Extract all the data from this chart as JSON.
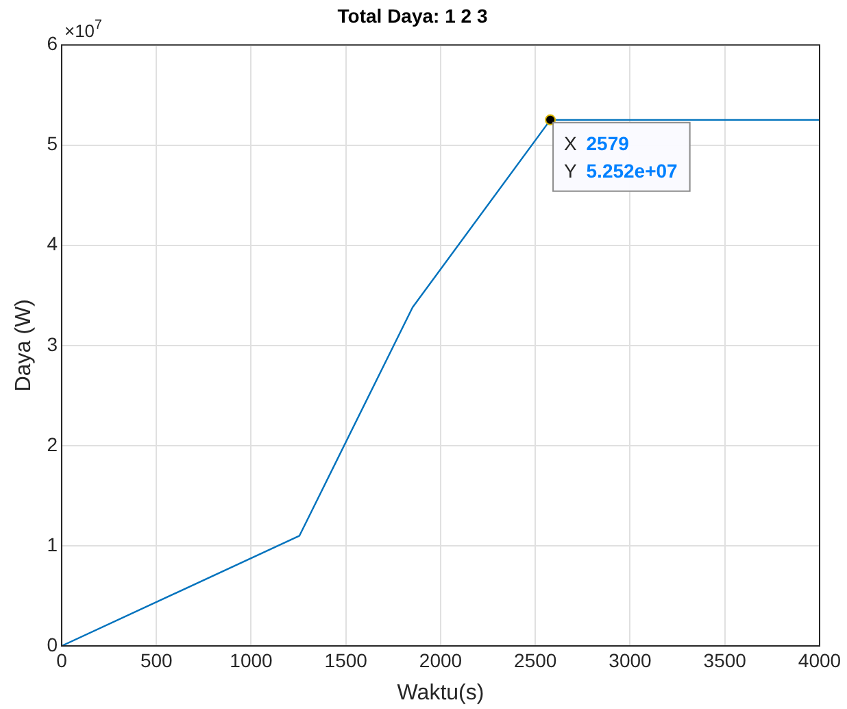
{
  "chart_data": {
    "type": "line",
    "title": "Total Daya: 1 2 3",
    "xlabel": "Waktu(s)",
    "ylabel": "Daya (W)",
    "x": [
      0,
      1255,
      1852,
      2579,
      4000
    ],
    "series": [
      {
        "color": "#0072bd",
        "values": [
          0,
          1.1,
          3.38,
          5.252,
          5.252
        ]
      }
    ],
    "xlim": [
      0,
      4000
    ],
    "xticks": [
      0,
      500,
      1000,
      1500,
      2000,
      2500,
      3000,
      3500,
      4000
    ],
    "ylim": [
      0,
      6
    ],
    "yticks": [
      0,
      1,
      2,
      3,
      4,
      5,
      6
    ],
    "grid": true,
    "legend": false,
    "marker": "none",
    "line_style": "solid",
    "annotations": [
      "×10$^{7}$",
      {
        "text": "X 2579",
        "x": 2579,
        "y": 5.252
      },
      {
        "text": "Y 5.252e+07",
        "x": 2579,
        "y": 5.252
      }
    ]
  }
}
